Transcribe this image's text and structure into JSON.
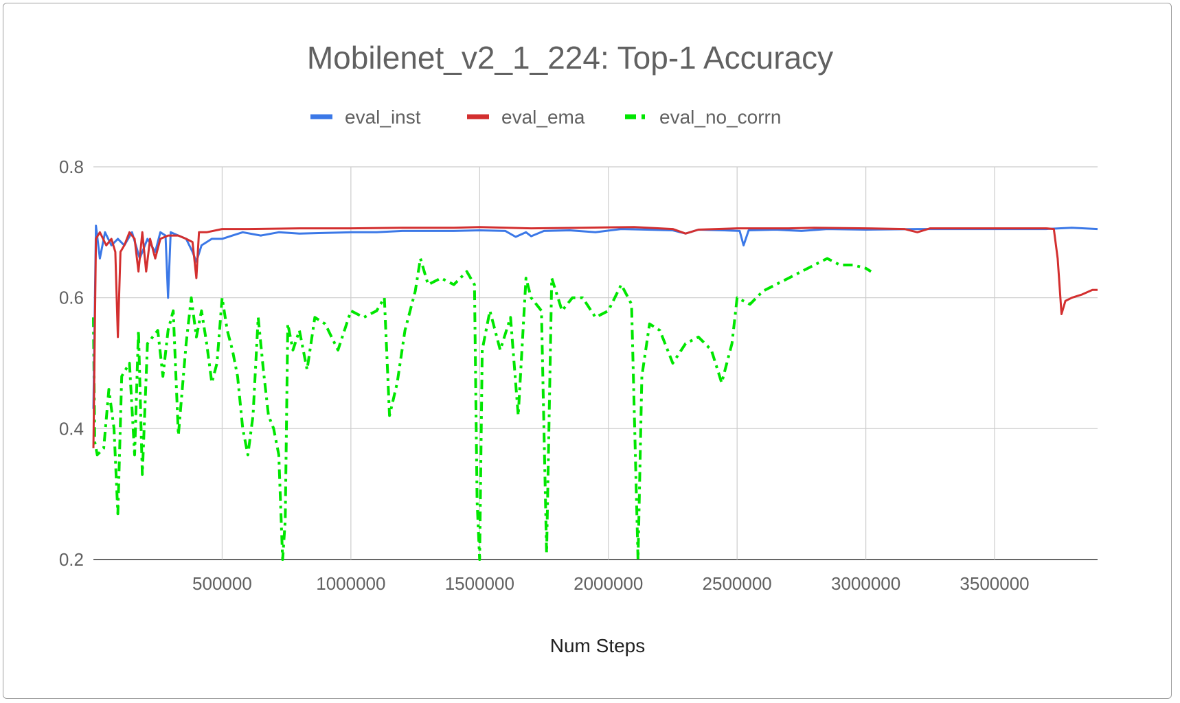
{
  "chart_data": {
    "type": "line",
    "title": "Mobilenet_v2_1_224: Top-1 Accuracy",
    "xlabel": "Num Steps",
    "ylabel": "",
    "xlim": [
      0,
      3900000
    ],
    "ylim": [
      0.2,
      0.8
    ],
    "xticks": [
      500000,
      1000000,
      1500000,
      2000000,
      2500000,
      3000000,
      3500000
    ],
    "xtick_labels": [
      "500000",
      "1000000",
      "1500000",
      "2000000",
      "2500000",
      "3000000",
      "3500000"
    ],
    "yticks": [
      0.2,
      0.4,
      0.6,
      0.8
    ],
    "ytick_labels": [
      "0.2",
      "0.4",
      "0.6",
      "0.8"
    ],
    "grid": true,
    "legend_position": "top",
    "series": [
      {
        "name": "eval_inst",
        "color": "#3b78e7",
        "dash": "solid",
        "points": [
          [
            0,
            0.43
          ],
          [
            10000,
            0.71
          ],
          [
            25000,
            0.66
          ],
          [
            45000,
            0.7
          ],
          [
            70000,
            0.68
          ],
          [
            95000,
            0.69
          ],
          [
            120000,
            0.68
          ],
          [
            150000,
            0.7
          ],
          [
            180000,
            0.66
          ],
          [
            210000,
            0.69
          ],
          [
            240000,
            0.67
          ],
          [
            260000,
            0.7
          ],
          [
            280000,
            0.695
          ],
          [
            290000,
            0.6
          ],
          [
            300000,
            0.7
          ],
          [
            330000,
            0.695
          ],
          [
            360000,
            0.69
          ],
          [
            385000,
            0.67
          ],
          [
            400000,
            0.655
          ],
          [
            420000,
            0.68
          ],
          [
            460000,
            0.69
          ],
          [
            500000,
            0.69
          ],
          [
            540000,
            0.695
          ],
          [
            580000,
            0.7
          ],
          [
            650000,
            0.695
          ],
          [
            720000,
            0.7
          ],
          [
            800000,
            0.698
          ],
          [
            900000,
            0.699
          ],
          [
            1000000,
            0.7
          ],
          [
            1100000,
            0.7
          ],
          [
            1200000,
            0.702
          ],
          [
            1300000,
            0.702
          ],
          [
            1400000,
            0.702
          ],
          [
            1500000,
            0.703
          ],
          [
            1600000,
            0.702
          ],
          [
            1640000,
            0.693
          ],
          [
            1680000,
            0.7
          ],
          [
            1700000,
            0.694
          ],
          [
            1750000,
            0.702
          ],
          [
            1850000,
            0.703
          ],
          [
            1950000,
            0.7
          ],
          [
            2050000,
            0.705
          ],
          [
            2150000,
            0.704
          ],
          [
            2250000,
            0.703
          ],
          [
            2300000,
            0.698
          ],
          [
            2350000,
            0.704
          ],
          [
            2450000,
            0.703
          ],
          [
            2510000,
            0.702
          ],
          [
            2525000,
            0.68
          ],
          [
            2545000,
            0.703
          ],
          [
            2650000,
            0.704
          ],
          [
            2750000,
            0.702
          ],
          [
            2850000,
            0.705
          ],
          [
            3000000,
            0.704
          ],
          [
            3200000,
            0.705
          ],
          [
            3400000,
            0.705
          ],
          [
            3600000,
            0.705
          ],
          [
            3700000,
            0.705
          ],
          [
            3800000,
            0.707
          ],
          [
            3900000,
            0.705
          ]
        ]
      },
      {
        "name": "eval_ema",
        "color": "#d32f2f",
        "dash": "solid",
        "points": [
          [
            0,
            0.37
          ],
          [
            10000,
            0.69
          ],
          [
            25000,
            0.7
          ],
          [
            50000,
            0.68
          ],
          [
            70000,
            0.69
          ],
          [
            85000,
            0.67
          ],
          [
            95000,
            0.54
          ],
          [
            105000,
            0.67
          ],
          [
            120000,
            0.68
          ],
          [
            140000,
            0.7
          ],
          [
            160000,
            0.69
          ],
          [
            175000,
            0.64
          ],
          [
            190000,
            0.7
          ],
          [
            205000,
            0.64
          ],
          [
            220000,
            0.69
          ],
          [
            240000,
            0.66
          ],
          [
            260000,
            0.69
          ],
          [
            290000,
            0.695
          ],
          [
            330000,
            0.695
          ],
          [
            360000,
            0.69
          ],
          [
            385000,
            0.685
          ],
          [
            400000,
            0.63
          ],
          [
            410000,
            0.7
          ],
          [
            440000,
            0.7
          ],
          [
            500000,
            0.705
          ],
          [
            600000,
            0.705
          ],
          [
            800000,
            0.706
          ],
          [
            1000000,
            0.706
          ],
          [
            1200000,
            0.707
          ],
          [
            1400000,
            0.707
          ],
          [
            1500000,
            0.708
          ],
          [
            1700000,
            0.706
          ],
          [
            1900000,
            0.707
          ],
          [
            2100000,
            0.708
          ],
          [
            2250000,
            0.705
          ],
          [
            2300000,
            0.698
          ],
          [
            2350000,
            0.704
          ],
          [
            2500000,
            0.706
          ],
          [
            2700000,
            0.706
          ],
          [
            2800000,
            0.707
          ],
          [
            3000000,
            0.706
          ],
          [
            3150000,
            0.705
          ],
          [
            3200000,
            0.7
          ],
          [
            3250000,
            0.706
          ],
          [
            3400000,
            0.706
          ],
          [
            3600000,
            0.706
          ],
          [
            3700000,
            0.706
          ],
          [
            3730000,
            0.705
          ],
          [
            3745000,
            0.66
          ],
          [
            3760000,
            0.575
          ],
          [
            3775000,
            0.595
          ],
          [
            3800000,
            0.6
          ],
          [
            3840000,
            0.605
          ],
          [
            3880000,
            0.612
          ],
          [
            3900000,
            0.612
          ]
        ]
      },
      {
        "name": "eval_no_corrn",
        "color": "#00e600",
        "dash": "dashdot",
        "points": [
          [
            0,
            0.57
          ],
          [
            5000,
            0.38
          ],
          [
            15000,
            0.36
          ],
          [
            40000,
            0.37
          ],
          [
            60000,
            0.46
          ],
          [
            80000,
            0.4
          ],
          [
            95000,
            0.27
          ],
          [
            110000,
            0.48
          ],
          [
            140000,
            0.5
          ],
          [
            160000,
            0.36
          ],
          [
            175000,
            0.55
          ],
          [
            190000,
            0.33
          ],
          [
            210000,
            0.53
          ],
          [
            230000,
            0.54
          ],
          [
            250000,
            0.55
          ],
          [
            270000,
            0.48
          ],
          [
            290000,
            0.55
          ],
          [
            310000,
            0.58
          ],
          [
            330000,
            0.39
          ],
          [
            360000,
            0.53
          ],
          [
            380000,
            0.6
          ],
          [
            400000,
            0.54
          ],
          [
            420000,
            0.58
          ],
          [
            440000,
            0.53
          ],
          [
            460000,
            0.47
          ],
          [
            480000,
            0.5
          ],
          [
            500000,
            0.6
          ],
          [
            520000,
            0.55
          ],
          [
            540000,
            0.52
          ],
          [
            560000,
            0.48
          ],
          [
            580000,
            0.4
          ],
          [
            600000,
            0.36
          ],
          [
            620000,
            0.42
          ],
          [
            640000,
            0.57
          ],
          [
            660000,
            0.49
          ],
          [
            680000,
            0.42
          ],
          [
            700000,
            0.4
          ],
          [
            720000,
            0.36
          ],
          [
            735000,
            0.2
          ],
          [
            745000,
            0.26
          ],
          [
            755000,
            0.56
          ],
          [
            775000,
            0.52
          ],
          [
            800000,
            0.55
          ],
          [
            830000,
            0.49
          ],
          [
            860000,
            0.57
          ],
          [
            900000,
            0.56
          ],
          [
            950000,
            0.52
          ],
          [
            1000000,
            0.58
          ],
          [
            1050000,
            0.57
          ],
          [
            1100000,
            0.58
          ],
          [
            1130000,
            0.6
          ],
          [
            1150000,
            0.42
          ],
          [
            1180000,
            0.47
          ],
          [
            1210000,
            0.55
          ],
          [
            1250000,
            0.61
          ],
          [
            1270000,
            0.66
          ],
          [
            1300000,
            0.62
          ],
          [
            1350000,
            0.63
          ],
          [
            1400000,
            0.62
          ],
          [
            1450000,
            0.64
          ],
          [
            1480000,
            0.62
          ],
          [
            1490000,
            0.29
          ],
          [
            1500000,
            0.2
          ],
          [
            1510000,
            0.52
          ],
          [
            1540000,
            0.58
          ],
          [
            1580000,
            0.52
          ],
          [
            1620000,
            0.57
          ],
          [
            1650000,
            0.42
          ],
          [
            1680000,
            0.63
          ],
          [
            1700000,
            0.6
          ],
          [
            1740000,
            0.58
          ],
          [
            1760000,
            0.21
          ],
          [
            1780000,
            0.63
          ],
          [
            1820000,
            0.58
          ],
          [
            1860000,
            0.6
          ],
          [
            1900000,
            0.6
          ],
          [
            1950000,
            0.57
          ],
          [
            2000000,
            0.58
          ],
          [
            2050000,
            0.62
          ],
          [
            2090000,
            0.59
          ],
          [
            2115000,
            0.2
          ],
          [
            2130000,
            0.48
          ],
          [
            2160000,
            0.56
          ],
          [
            2200000,
            0.55
          ],
          [
            2250000,
            0.5
          ],
          [
            2300000,
            0.53
          ],
          [
            2350000,
            0.54
          ],
          [
            2400000,
            0.52
          ],
          [
            2440000,
            0.47
          ],
          [
            2480000,
            0.53
          ],
          [
            2500000,
            0.6
          ],
          [
            2550000,
            0.59
          ],
          [
            2600000,
            0.61
          ],
          [
            2650000,
            0.62
          ],
          [
            2700000,
            0.63
          ],
          [
            2750000,
            0.64
          ],
          [
            2800000,
            0.65
          ],
          [
            2850000,
            0.66
          ],
          [
            2900000,
            0.65
          ],
          [
            2950000,
            0.65
          ],
          [
            3000000,
            0.645
          ],
          [
            3020000,
            0.64
          ]
        ]
      }
    ]
  }
}
